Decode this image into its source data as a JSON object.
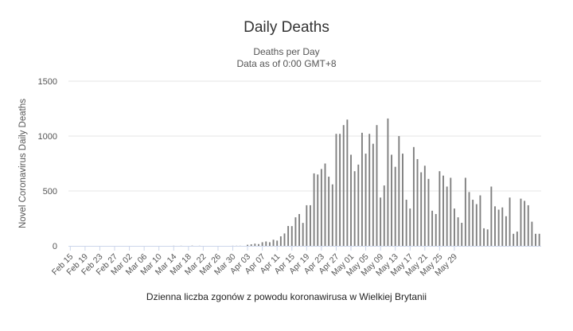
{
  "chart_data": {
    "type": "bar",
    "title": "Daily Deaths",
    "subtitle": [
      "Deaths per Day",
      "Data as of 0:00 GMT+8"
    ],
    "ylabel": "Novel Coronavirus Daily Deaths",
    "xlabel": "",
    "caption": "Dzienna liczba zgonów z powodu koronawirusa w Wielkiej Brytanii",
    "ylim": [
      0,
      1500
    ],
    "yticks": [
      0,
      500,
      1000,
      1500
    ],
    "grid": true,
    "legend": false,
    "bar_color": "#808080",
    "start_date": "2020-02-15",
    "xtick_labels": [
      "Feb 15",
      "Feb 19",
      "Feb 23",
      "Feb 27",
      "Mar 02",
      "Mar 06",
      "Mar 10",
      "Mar 14",
      "Mar 18",
      "Mar 22",
      "Mar 26",
      "Mar 30",
      "Apr 03",
      "Apr 07",
      "Apr 11",
      "Apr 15",
      "Apr 19",
      "Apr 23",
      "Apr 27",
      "May 01",
      "May 05",
      "May 09",
      "May 13",
      "May 17",
      "May 21",
      "May 25",
      "May 29"
    ],
    "values": [
      0,
      0,
      0,
      0,
      0,
      0,
      0,
      0,
      0,
      0,
      0,
      0,
      0,
      0,
      0,
      0,
      0,
      0,
      0,
      0,
      0,
      0,
      0,
      0,
      0,
      0,
      0,
      0,
      1,
      0,
      1,
      0,
      0,
      2,
      0,
      1,
      0,
      0,
      0,
      0,
      0,
      0,
      0,
      0,
      1,
      1,
      1,
      0,
      10,
      14,
      20,
      16,
      33,
      40,
      33,
      56,
      48,
      87,
      113,
      181,
      180,
      260,
      290,
      209,
      370,
      370,
      660,
      650,
      700,
      750,
      630,
      560,
      1020,
      1020,
      1100,
      1150,
      830,
      680,
      740,
      1030,
      840,
      1020,
      930,
      1100,
      440,
      550,
      1160,
      830,
      720,
      1000,
      840,
      420,
      340,
      900,
      790,
      670,
      730,
      610,
      320,
      290,
      680,
      640,
      540,
      620,
      340,
      260,
      210,
      620,
      490,
      420,
      380,
      460,
      160,
      150,
      540,
      360,
      330,
      350,
      270,
      440,
      110,
      130,
      430,
      410,
      370,
      220,
      110,
      110
    ]
  }
}
